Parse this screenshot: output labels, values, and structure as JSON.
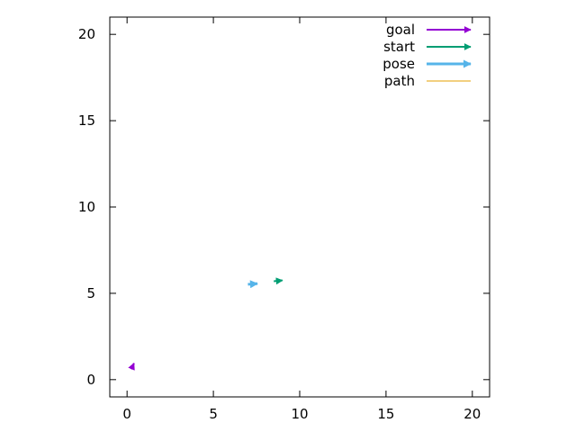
{
  "chart_data": {
    "type": "line",
    "title": "",
    "xlabel": "",
    "ylabel": "",
    "xlim": [
      -1,
      21
    ],
    "ylim": [
      -1,
      21
    ],
    "xticks": [
      0,
      5,
      10,
      15,
      20
    ],
    "yticks": [
      0,
      5,
      10,
      15,
      20
    ],
    "xtick_labels": [
      "0",
      "5",
      "10",
      "15",
      "20"
    ],
    "ytick_labels": [
      "0",
      "5",
      "10",
      "15",
      "20"
    ],
    "grid": false,
    "legend": {
      "placement": "top-right"
    },
    "series": [
      {
        "name": "goal",
        "kind": "vector",
        "color": "#9400d3",
        "segments": [
          [
            0.25,
            0.6,
            0.4,
            0.95
          ]
        ]
      },
      {
        "name": "start",
        "kind": "vector",
        "color": "#009e73",
        "segments": [
          [
            8.5,
            5.7,
            9.0,
            5.75
          ]
        ]
      },
      {
        "name": "pose",
        "kind": "vector",
        "color": "#56b4e9",
        "segments": [
          [
            7.0,
            5.52,
            7.55,
            5.56
          ]
        ]
      },
      {
        "name": "path",
        "kind": "line",
        "color": "#e69f00",
        "segments": []
      }
    ]
  }
}
